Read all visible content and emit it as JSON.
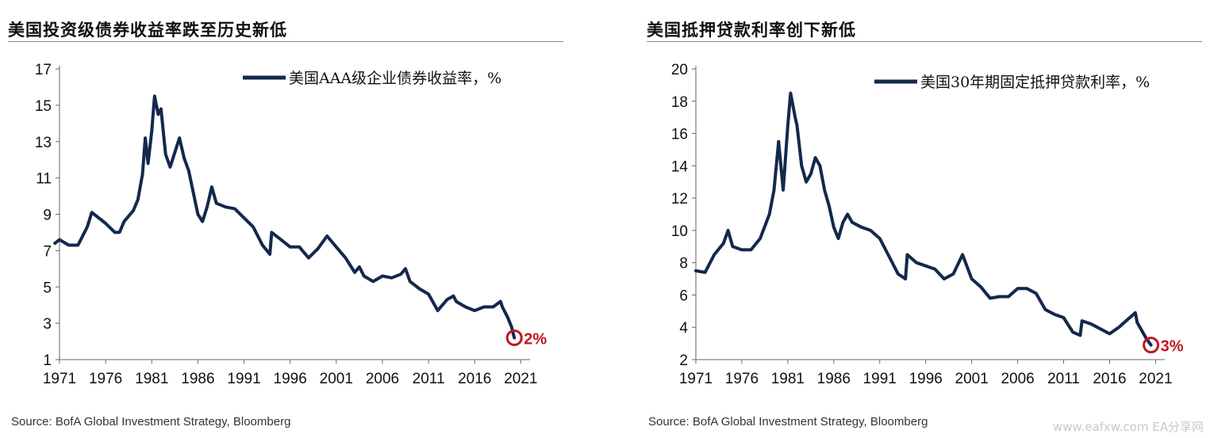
{
  "watermark": "www.eafxw.com EA分享网",
  "chart_data": [
    {
      "type": "line",
      "title": "美国投资级债券收益率跌至历史新低",
      "source": "Source: BofA Global Investment Strategy, Bloomberg",
      "series": [
        {
          "name": "美国AAA级企业债券收益率，%",
          "color": "#13284d",
          "x": [
            1970.5,
            1971,
            1972,
            1973,
            1974,
            1974.5,
            1975,
            1976,
            1977,
            1977.5,
            1978,
            1979,
            1979.5,
            1980,
            1980.3,
            1980.6,
            1981,
            1981.3,
            1981.7,
            1982,
            1982.5,
            1983,
            1983.5,
            1984,
            1984.5,
            1985,
            1985.5,
            1986,
            1986.5,
            1987,
            1987.5,
            1988,
            1989,
            1990,
            1991,
            1992,
            1993,
            1993.8,
            1994,
            1995,
            1996,
            1997,
            1998,
            1999,
            2000,
            2001,
            2002,
            2003,
            2003.5,
            2004,
            2005,
            2006,
            2007,
            2008,
            2008.5,
            2009,
            2010,
            2011,
            2012,
            2013,
            2013.7,
            2014,
            2015,
            2016,
            2017,
            2018,
            2018.8,
            2019,
            2019.6,
            2020,
            2020.3
          ],
          "y": [
            7.4,
            7.6,
            7.3,
            7.3,
            8.3,
            9.1,
            8.9,
            8.5,
            8.0,
            8.0,
            8.6,
            9.2,
            9.8,
            11.2,
            13.2,
            11.8,
            13.6,
            15.5,
            14.5,
            14.8,
            12.3,
            11.6,
            12.4,
            13.2,
            12.1,
            11.4,
            10.2,
            9.0,
            8.6,
            9.4,
            10.5,
            9.6,
            9.4,
            9.3,
            8.8,
            8.3,
            7.3,
            6.8,
            8.0,
            7.6,
            7.2,
            7.2,
            6.6,
            7.1,
            7.8,
            7.2,
            6.6,
            5.8,
            6.1,
            5.6,
            5.3,
            5.6,
            5.5,
            5.7,
            6.0,
            5.3,
            4.9,
            4.6,
            3.7,
            4.3,
            4.5,
            4.2,
            3.9,
            3.7,
            3.9,
            3.9,
            4.2,
            3.9,
            3.3,
            2.8,
            2.2
          ]
        }
      ],
      "xlim": [
        1971,
        2022
      ],
      "ylim": [
        1,
        17
      ],
      "xticks": [
        "1971",
        "1976",
        "1981",
        "1986",
        "1991",
        "1996",
        "2001",
        "2006",
        "2011",
        "2016",
        "2021"
      ],
      "yticks": [
        "1",
        "3",
        "5",
        "7",
        "9",
        "11",
        "13",
        "15",
        "17"
      ],
      "legend_position": "top-right",
      "annotation": {
        "text": "2%",
        "x": 2020.3,
        "y": 2.2,
        "color": "#c0161f"
      }
    },
    {
      "type": "line",
      "title": "美国抵押贷款利率创下新低",
      "source": "Source: BofA Global Investment Strategy, Bloomberg",
      "series": [
        {
          "name": "美国30年期固定抵押贷款利率，%",
          "color": "#13284d",
          "x": [
            1971,
            1972,
            1973,
            1974,
            1974.5,
            1975,
            1976,
            1977,
            1978,
            1979,
            1979.5,
            1980,
            1980.5,
            1981,
            1981.3,
            1981.8,
            1982,
            1982.5,
            1983,
            1983.5,
            1984,
            1984.5,
            1985,
            1985.5,
            1986,
            1986.5,
            1987,
            1987.5,
            1988,
            1989,
            1990,
            1991,
            1992,
            1993,
            1993.8,
            1994,
            1995,
            1996,
            1997,
            1998,
            1999,
            2000,
            2001,
            2002,
            2003,
            2004,
            2005,
            2006,
            2007,
            2008,
            2009,
            2010,
            2011,
            2012,
            2012.8,
            2013,
            2014,
            2015,
            2016,
            2017,
            2018,
            2018.8,
            2019,
            2019.5,
            2020,
            2020.5
          ],
          "y": [
            7.5,
            7.4,
            8.5,
            9.2,
            10.0,
            9.0,
            8.8,
            8.8,
            9.5,
            11.0,
            12.5,
            15.5,
            12.5,
            16.5,
            18.5,
            17.0,
            16.5,
            14.0,
            13.0,
            13.5,
            14.5,
            14.0,
            12.5,
            11.5,
            10.2,
            9.5,
            10.5,
            11.0,
            10.5,
            10.2,
            10.0,
            9.5,
            8.4,
            7.3,
            7.0,
            8.5,
            8.0,
            7.8,
            7.6,
            7.0,
            7.3,
            8.5,
            7.0,
            6.5,
            5.8,
            5.9,
            5.9,
            6.4,
            6.4,
            6.1,
            5.1,
            4.8,
            4.6,
            3.7,
            3.5,
            4.4,
            4.2,
            3.9,
            3.6,
            4.0,
            4.5,
            4.9,
            4.3,
            3.8,
            3.3,
            2.9
          ]
        }
      ],
      "xlim": [
        1971,
        2022
      ],
      "ylim": [
        2,
        20
      ],
      "xticks": [
        "1971",
        "1976",
        "1981",
        "1986",
        "1991",
        "1996",
        "2001",
        "2006",
        "2011",
        "2016",
        "2021"
      ],
      "yticks": [
        "2",
        "4",
        "6",
        "8",
        "10",
        "12",
        "14",
        "16",
        "18",
        "20"
      ],
      "legend_position": "top-right",
      "annotation": {
        "text": "3%",
        "x": 2020.5,
        "y": 2.9,
        "color": "#c0161f"
      }
    }
  ]
}
